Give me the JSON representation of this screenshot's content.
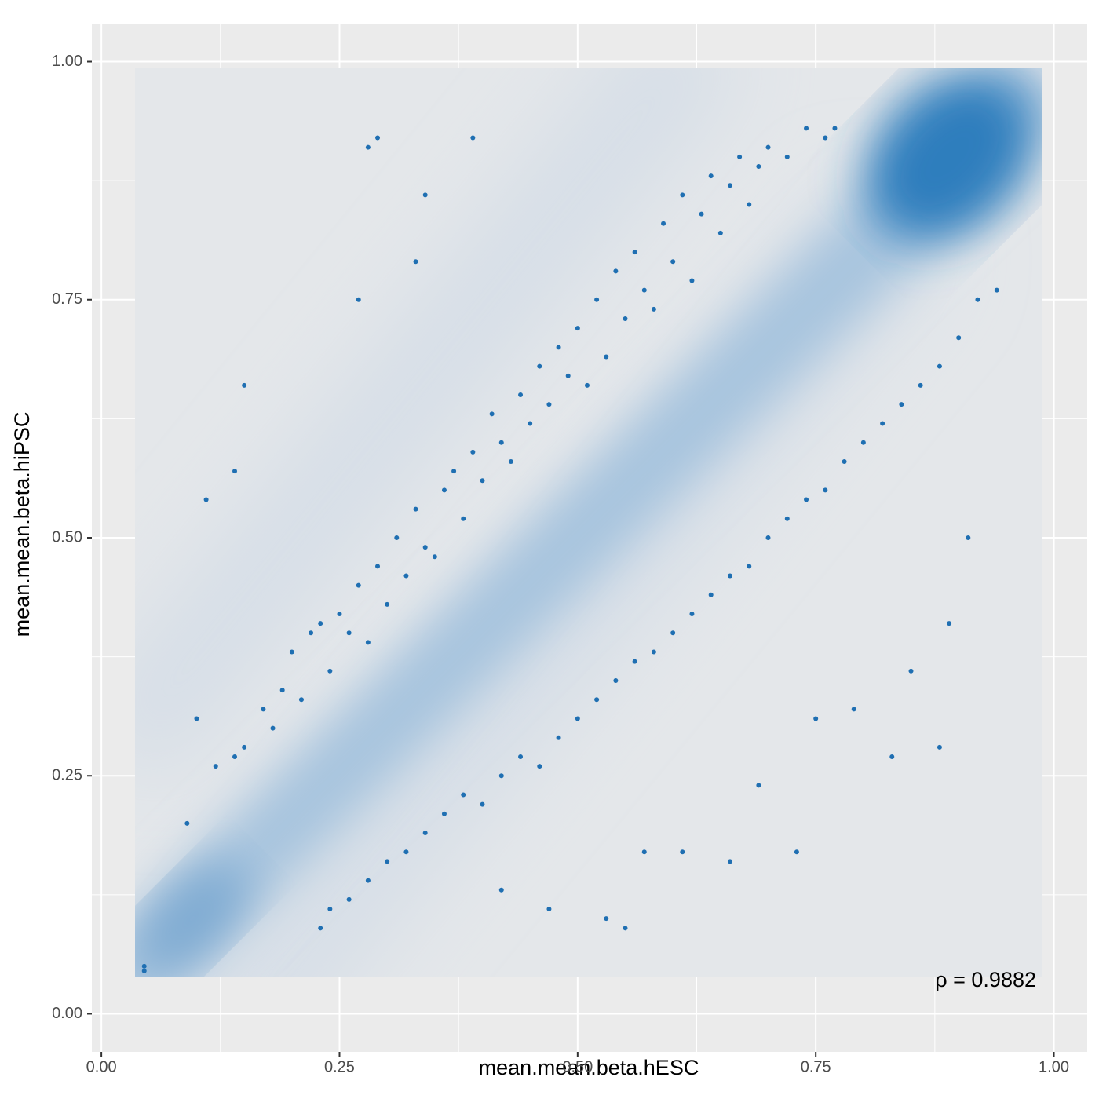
{
  "chart_data": {
    "type": "scatter",
    "xlabel": "mean.mean.beta.hESC",
    "ylabel": "mean.mean.beta.hiPSC",
    "annotation": "ρ = 0.9882",
    "xlim": [
      -0.01,
      1.035
    ],
    "ylim": [
      -0.04,
      1.04
    ],
    "xticks": [
      {
        "value": 0,
        "label": "0.00"
      },
      {
        "value": 0.25,
        "label": "0.25"
      },
      {
        "value": 0.5,
        "label": "0.50"
      },
      {
        "value": 0.75,
        "label": "0.75"
      },
      {
        "value": 1,
        "label": "1.00"
      }
    ],
    "yticks": [
      {
        "value": 0,
        "label": "0.00"
      },
      {
        "value": 0.25,
        "label": "0.25"
      },
      {
        "value": 0.5,
        "label": "0.50"
      },
      {
        "value": 0.75,
        "label": "0.75"
      },
      {
        "value": 1,
        "label": "1.00"
      }
    ],
    "grid": true,
    "series": [
      {
        "color": "#1f6fb2",
        "x": [
          0.1,
          0.12,
          0.14,
          0.15,
          0.17,
          0.18,
          0.19,
          0.2,
          0.21,
          0.22,
          0.23,
          0.24,
          0.25,
          0.26,
          0.27,
          0.28,
          0.29,
          0.3,
          0.31,
          0.32,
          0.33,
          0.34,
          0.35,
          0.36,
          0.37,
          0.38,
          0.39,
          0.4,
          0.41,
          0.42,
          0.43,
          0.44,
          0.45,
          0.46,
          0.47,
          0.48,
          0.49,
          0.5,
          0.51,
          0.52,
          0.53,
          0.54,
          0.55,
          0.56,
          0.57,
          0.58,
          0.59,
          0.6,
          0.61,
          0.62,
          0.63,
          0.64,
          0.65,
          0.66,
          0.67,
          0.68,
          0.69,
          0.7,
          0.72,
          0.74,
          0.76,
          0.77,
          0.15,
          0.28,
          0.29,
          0.39,
          0.34,
          0.27,
          0.11,
          0.14,
          0.33,
          0.045,
          0.045,
          0.09,
          0.23,
          0.24,
          0.26,
          0.28,
          0.3,
          0.32,
          0.34,
          0.36,
          0.38,
          0.4,
          0.42,
          0.44,
          0.46,
          0.48,
          0.5,
          0.52,
          0.54,
          0.56,
          0.58,
          0.6,
          0.62,
          0.64,
          0.66,
          0.68,
          0.7,
          0.72,
          0.74,
          0.76,
          0.78,
          0.8,
          0.82,
          0.84,
          0.86,
          0.88,
          0.9,
          0.92,
          0.94,
          0.47,
          0.53,
          0.55,
          0.42,
          0.57,
          0.61,
          0.66,
          0.73,
          0.83,
          0.88,
          0.85,
          0.89,
          0.79,
          0.91,
          0.69,
          0.75
        ],
        "y": [
          0.31,
          0.26,
          0.27,
          0.28,
          0.32,
          0.3,
          0.34,
          0.38,
          0.33,
          0.4,
          0.41,
          0.36,
          0.42,
          0.4,
          0.45,
          0.39,
          0.47,
          0.43,
          0.5,
          0.46,
          0.53,
          0.49,
          0.48,
          0.55,
          0.57,
          0.52,
          0.59,
          0.56,
          0.63,
          0.6,
          0.58,
          0.65,
          0.62,
          0.68,
          0.64,
          0.7,
          0.67,
          0.72,
          0.66,
          0.75,
          0.69,
          0.78,
          0.73,
          0.8,
          0.76,
          0.74,
          0.83,
          0.79,
          0.86,
          0.77,
          0.84,
          0.88,
          0.82,
          0.87,
          0.9,
          0.85,
          0.89,
          0.91,
          0.9,
          0.93,
          0.92,
          0.93,
          0.66,
          0.91,
          0.92,
          0.92,
          0.86,
          0.75,
          0.54,
          0.57,
          0.79,
          0.05,
          0.045,
          0.2,
          0.09,
          0.11,
          0.12,
          0.14,
          0.16,
          0.17,
          0.19,
          0.21,
          0.23,
          0.22,
          0.25,
          0.27,
          0.26,
          0.29,
          0.31,
          0.33,
          0.35,
          0.37,
          0.38,
          0.4,
          0.42,
          0.44,
          0.46,
          0.47,
          0.5,
          0.52,
          0.54,
          0.55,
          0.58,
          0.6,
          0.62,
          0.64,
          0.66,
          0.68,
          0.71,
          0.75,
          0.76,
          0.11,
          0.1,
          0.09,
          0.13,
          0.17,
          0.17,
          0.16,
          0.17,
          0.27,
          0.28,
          0.36,
          0.41,
          0.32,
          0.5,
          0.24,
          0.31
        ]
      }
    ]
  }
}
